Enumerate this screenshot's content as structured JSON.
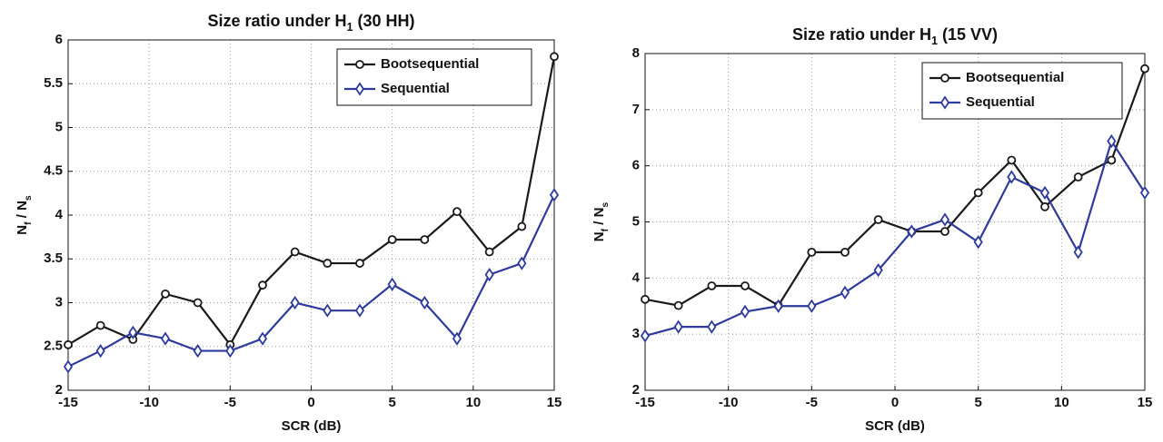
{
  "chart_data": [
    {
      "type": "line",
      "title": [
        "Size ratio under H",
        "1",
        " (30 HH)"
      ],
      "xlabel": "SCR (dB)",
      "ylabel": [
        "N",
        "f",
        " / N",
        "s"
      ],
      "x": [
        -15,
        -13,
        -11,
        -9,
        -7,
        -5,
        -3,
        -1,
        1,
        3,
        5,
        7,
        9,
        11,
        13,
        15
      ],
      "series": [
        {
          "name": "Bootsequential",
          "color": "#1a1a1a",
          "marker": "circle",
          "values": [
            2.52,
            2.74,
            2.58,
            3.1,
            3.0,
            2.52,
            3.2,
            3.58,
            3.45,
            3.45,
            3.72,
            3.72,
            4.04,
            3.58,
            3.87,
            5.81
          ]
        },
        {
          "name": "Sequential",
          "color": "#2e3b9c",
          "marker": "diamond",
          "values": [
            2.27,
            2.45,
            2.66,
            2.59,
            2.45,
            2.45,
            2.59,
            3.0,
            2.91,
            2.91,
            3.21,
            3.0,
            2.59,
            3.32,
            3.45,
            4.23
          ]
        }
      ],
      "xlim": [
        -15,
        15
      ],
      "xticks": [
        -15,
        -10,
        -5,
        0,
        5,
        10,
        15
      ],
      "ylim": [
        2,
        6
      ],
      "yticks": [
        2,
        2.5,
        3,
        3.5,
        4,
        4.5,
        5,
        5.5,
        6
      ],
      "grid": true,
      "legend": "upper right"
    },
    {
      "type": "line",
      "title": [
        "Size ratio under H",
        "1",
        " (15 VV)"
      ],
      "xlabel": "SCR (dB)",
      "ylabel": [
        "N",
        "f",
        " / N",
        "s"
      ],
      "x": [
        -15,
        -13,
        -11,
        -9,
        -7,
        -5,
        -3,
        -1,
        1,
        3,
        5,
        7,
        9,
        11,
        13,
        15
      ],
      "series": [
        {
          "name": "Bootsequential",
          "color": "#1a1a1a",
          "marker": "circle",
          "values": [
            3.62,
            3.51,
            3.86,
            3.86,
            3.51,
            4.46,
            4.46,
            5.04,
            4.83,
            4.83,
            5.52,
            6.1,
            5.27,
            5.8,
            6.1,
            7.73
          ]
        },
        {
          "name": "Sequential",
          "color": "#2e3b9c",
          "marker": "diamond",
          "values": [
            2.97,
            3.13,
            3.13,
            3.4,
            3.5,
            3.5,
            3.74,
            4.14,
            4.83,
            5.04,
            4.64,
            5.8,
            5.52,
            4.46,
            6.44,
            5.52
          ]
        }
      ],
      "xlim": [
        -15,
        15
      ],
      "xticks": [
        -15,
        -10,
        -5,
        0,
        5,
        10,
        15
      ],
      "ylim": [
        2,
        8
      ],
      "yticks": [
        2,
        3,
        4,
        5,
        6,
        7,
        8
      ],
      "grid": true,
      "legend": "upper right"
    }
  ]
}
